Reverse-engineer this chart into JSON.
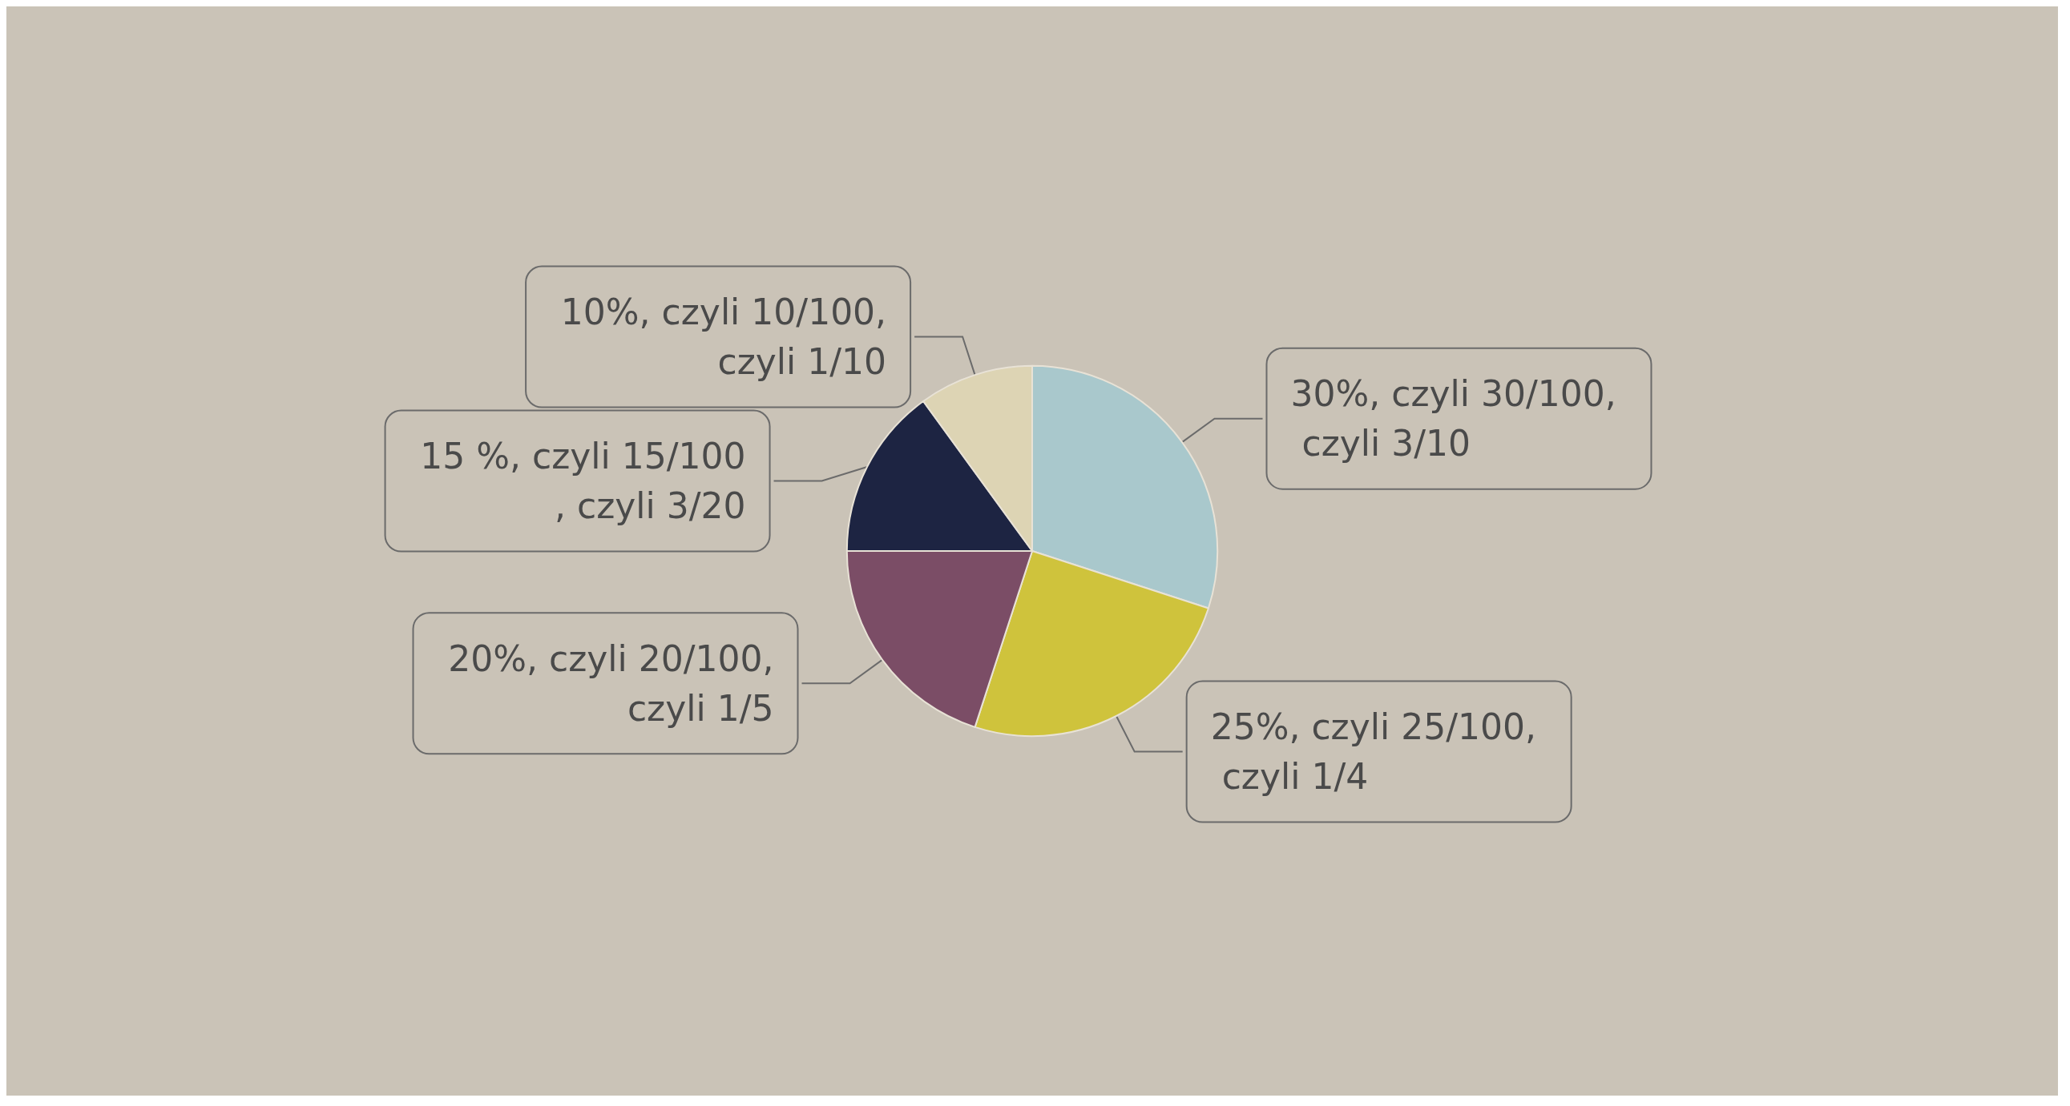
{
  "chart_data": {
    "type": "pie",
    "categories": [
      "30%, czyli 30/100, czyli 3/10",
      "25%, czyli 25/100, czyli 1/4",
      "20%, czyli 20/100, czyli 1/5",
      "15 %, czyli 15/100, czyli 3/20",
      "10%, czyli 10/100, czyli 1/10"
    ],
    "values": [
      30,
      25,
      20,
      15,
      10
    ],
    "colors": [
      "#a9c8cc",
      "#cfc33c",
      "#7b4d66",
      "#1d2442",
      "#ddd4b4"
    ],
    "legend": false
  }
}
